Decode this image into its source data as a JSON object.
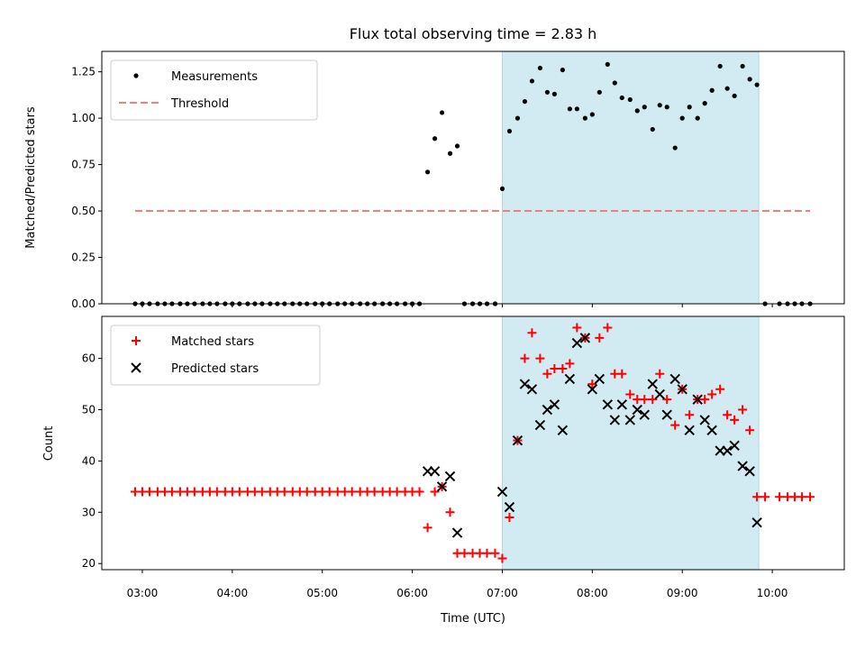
{
  "chart_data": {
    "title": "Flux total observing time = 2.83 h",
    "xlabel": "Time (UTC)",
    "x_ticks": [
      "03:00",
      "04:00",
      "05:00",
      "06:00",
      "07:00",
      "08:00",
      "09:00",
      "10:00"
    ],
    "x_tick_hours": [
      3,
      4,
      5,
      6,
      7,
      8,
      9,
      10
    ],
    "xlim": [
      2.55,
      10.8
    ],
    "shaded_span": [
      7.0,
      9.85
    ],
    "shade_color": "#add8e6",
    "panels": [
      {
        "type": "scatter",
        "ylabel": "Matched/Predicted stars",
        "ylim": [
          0,
          1.36
        ],
        "y_ticks": [
          "0.00",
          "0.25",
          "0.50",
          "0.75",
          "1.00",
          "1.25"
        ],
        "y_tick_values": [
          0,
          0.25,
          0.5,
          0.75,
          1.0,
          1.25
        ],
        "legend_position": "upper-left",
        "series": [
          {
            "name": "Measurements",
            "marker": "dot",
            "color": "#000000",
            "x": [
              2.92,
              3.0,
              3.08,
              3.17,
              3.25,
              3.33,
              3.42,
              3.5,
              3.58,
              3.67,
              3.75,
              3.83,
              3.92,
              4.0,
              4.08,
              4.17,
              4.25,
              4.33,
              4.42,
              4.5,
              4.58,
              4.67,
              4.75,
              4.83,
              4.92,
              5.0,
              5.08,
              5.17,
              5.25,
              5.33,
              5.42,
              5.5,
              5.58,
              5.67,
              5.75,
              5.83,
              5.92,
              6.0,
              6.08,
              6.17,
              6.25,
              6.33,
              6.42,
              6.5,
              6.58,
              6.67,
              6.75,
              6.83,
              6.92,
              7.0,
              7.08,
              7.17,
              7.25,
              7.33,
              7.42,
              7.5,
              7.58,
              7.67,
              7.75,
              7.83,
              7.92,
              8.0,
              8.08,
              8.17,
              8.25,
              8.33,
              8.42,
              8.5,
              8.58,
              8.67,
              8.75,
              8.83,
              8.92,
              9.0,
              9.08,
              9.17,
              9.25,
              9.33,
              9.42,
              9.5,
              9.58,
              9.67,
              9.75,
              9.83,
              9.92,
              10.08,
              10.17,
              10.25,
              10.33,
              10.42
            ],
            "y": [
              0,
              0,
              0,
              0,
              0,
              0,
              0,
              0,
              0,
              0,
              0,
              0,
              0,
              0,
              0,
              0,
              0,
              0,
              0,
              0,
              0,
              0,
              0,
              0,
              0,
              0,
              0,
              0,
              0,
              0,
              0,
              0,
              0,
              0,
              0,
              0,
              0,
              0,
              0,
              0.71,
              0.89,
              1.03,
              0.81,
              0.85,
              0,
              0,
              0,
              0,
              0,
              0.62,
              0.93,
              1.0,
              1.09,
              1.2,
              1.27,
              1.14,
              1.13,
              1.26,
              1.05,
              1.05,
              1.0,
              1.02,
              1.14,
              1.29,
              1.19,
              1.11,
              1.1,
              1.04,
              1.06,
              0.94,
              1.07,
              1.06,
              0.84,
              1.0,
              1.06,
              1.0,
              1.08,
              1.15,
              1.28,
              1.16,
              1.12,
              1.28,
              1.21,
              1.18,
              0,
              0,
              0,
              0,
              0,
              0
            ]
          },
          {
            "name": "Threshold",
            "marker": "dashed-line",
            "color": "#f08080",
            "x": [
              2.92,
              10.42
            ],
            "y": [
              0.5,
              0.5
            ]
          }
        ]
      },
      {
        "type": "scatter",
        "ylabel": "Count",
        "ylim": [
          18.8,
          68.2
        ],
        "y_ticks": [
          "20",
          "30",
          "40",
          "50",
          "60"
        ],
        "y_tick_values": [
          20,
          30,
          40,
          50,
          60
        ],
        "legend_position": "upper-left",
        "series": [
          {
            "name": "Matched stars",
            "marker": "plus",
            "color": "#ff0000",
            "x": [
              2.92,
              3.0,
              3.08,
              3.17,
              3.25,
              3.33,
              3.42,
              3.5,
              3.58,
              3.67,
              3.75,
              3.83,
              3.92,
              4.0,
              4.08,
              4.17,
              4.25,
              4.33,
              4.42,
              4.5,
              4.58,
              4.67,
              4.75,
              4.83,
              4.92,
              5.0,
              5.08,
              5.17,
              5.25,
              5.33,
              5.42,
              5.5,
              5.58,
              5.67,
              5.75,
              5.83,
              5.92,
              6.0,
              6.08,
              6.17,
              6.25,
              6.33,
              6.42,
              6.5,
              6.58,
              6.67,
              6.75,
              6.83,
              6.92,
              7.0,
              7.08,
              7.17,
              7.25,
              7.33,
              7.42,
              7.5,
              7.58,
              7.67,
              7.75,
              7.83,
              7.92,
              8.0,
              8.08,
              8.17,
              8.25,
              8.33,
              8.42,
              8.5,
              8.58,
              8.67,
              8.75,
              8.83,
              8.92,
              9.0,
              9.08,
              9.17,
              9.25,
              9.33,
              9.42,
              9.5,
              9.58,
              9.67,
              9.75,
              9.83,
              9.92,
              10.08,
              10.17,
              10.25,
              10.33,
              10.42
            ],
            "y": [
              34,
              34,
              34,
              34,
              34,
              34,
              34,
              34,
              34,
              34,
              34,
              34,
              34,
              34,
              34,
              34,
              34,
              34,
              34,
              34,
              34,
              34,
              34,
              34,
              34,
              34,
              34,
              34,
              34,
              34,
              34,
              34,
              34,
              34,
              34,
              34,
              34,
              34,
              34,
              27,
              34,
              35,
              30,
              22,
              22,
              22,
              22,
              22,
              22,
              21,
              29,
              44,
              60,
              65,
              60,
              57,
              58,
              58,
              59,
              66,
              64,
              55,
              64,
              66,
              57,
              57,
              53,
              52,
              52,
              52,
              57,
              52,
              47,
              54,
              49,
              52,
              52,
              53,
              54,
              49,
              48,
              50,
              46,
              33,
              33,
              33,
              33,
              33,
              33,
              33
            ]
          },
          {
            "name": "Predicted stars",
            "marker": "x",
            "color": "#000000",
            "x": [
              6.17,
              6.25,
              6.33,
              6.42,
              6.5,
              7.0,
              7.08,
              7.17,
              7.25,
              7.33,
              7.42,
              7.5,
              7.58,
              7.67,
              7.75,
              7.83,
              7.92,
              8.0,
              8.08,
              8.17,
              8.25,
              8.33,
              8.42,
              8.5,
              8.58,
              8.67,
              8.75,
              8.83,
              8.92,
              9.0,
              9.08,
              9.17,
              9.25,
              9.33,
              9.42,
              9.5,
              9.58,
              9.67,
              9.75,
              9.83
            ],
            "y": [
              38,
              38,
              35,
              37,
              26,
              34,
              31,
              44,
              55,
              54,
              47,
              50,
              51,
              46,
              56,
              63,
              64,
              54,
              56,
              51,
              48,
              51,
              48,
              50,
              49,
              55,
              53,
              49,
              56,
              54,
              46,
              52,
              48,
              46,
              42,
              42,
              43,
              39,
              38,
              28
            ]
          }
        ]
      }
    ]
  }
}
